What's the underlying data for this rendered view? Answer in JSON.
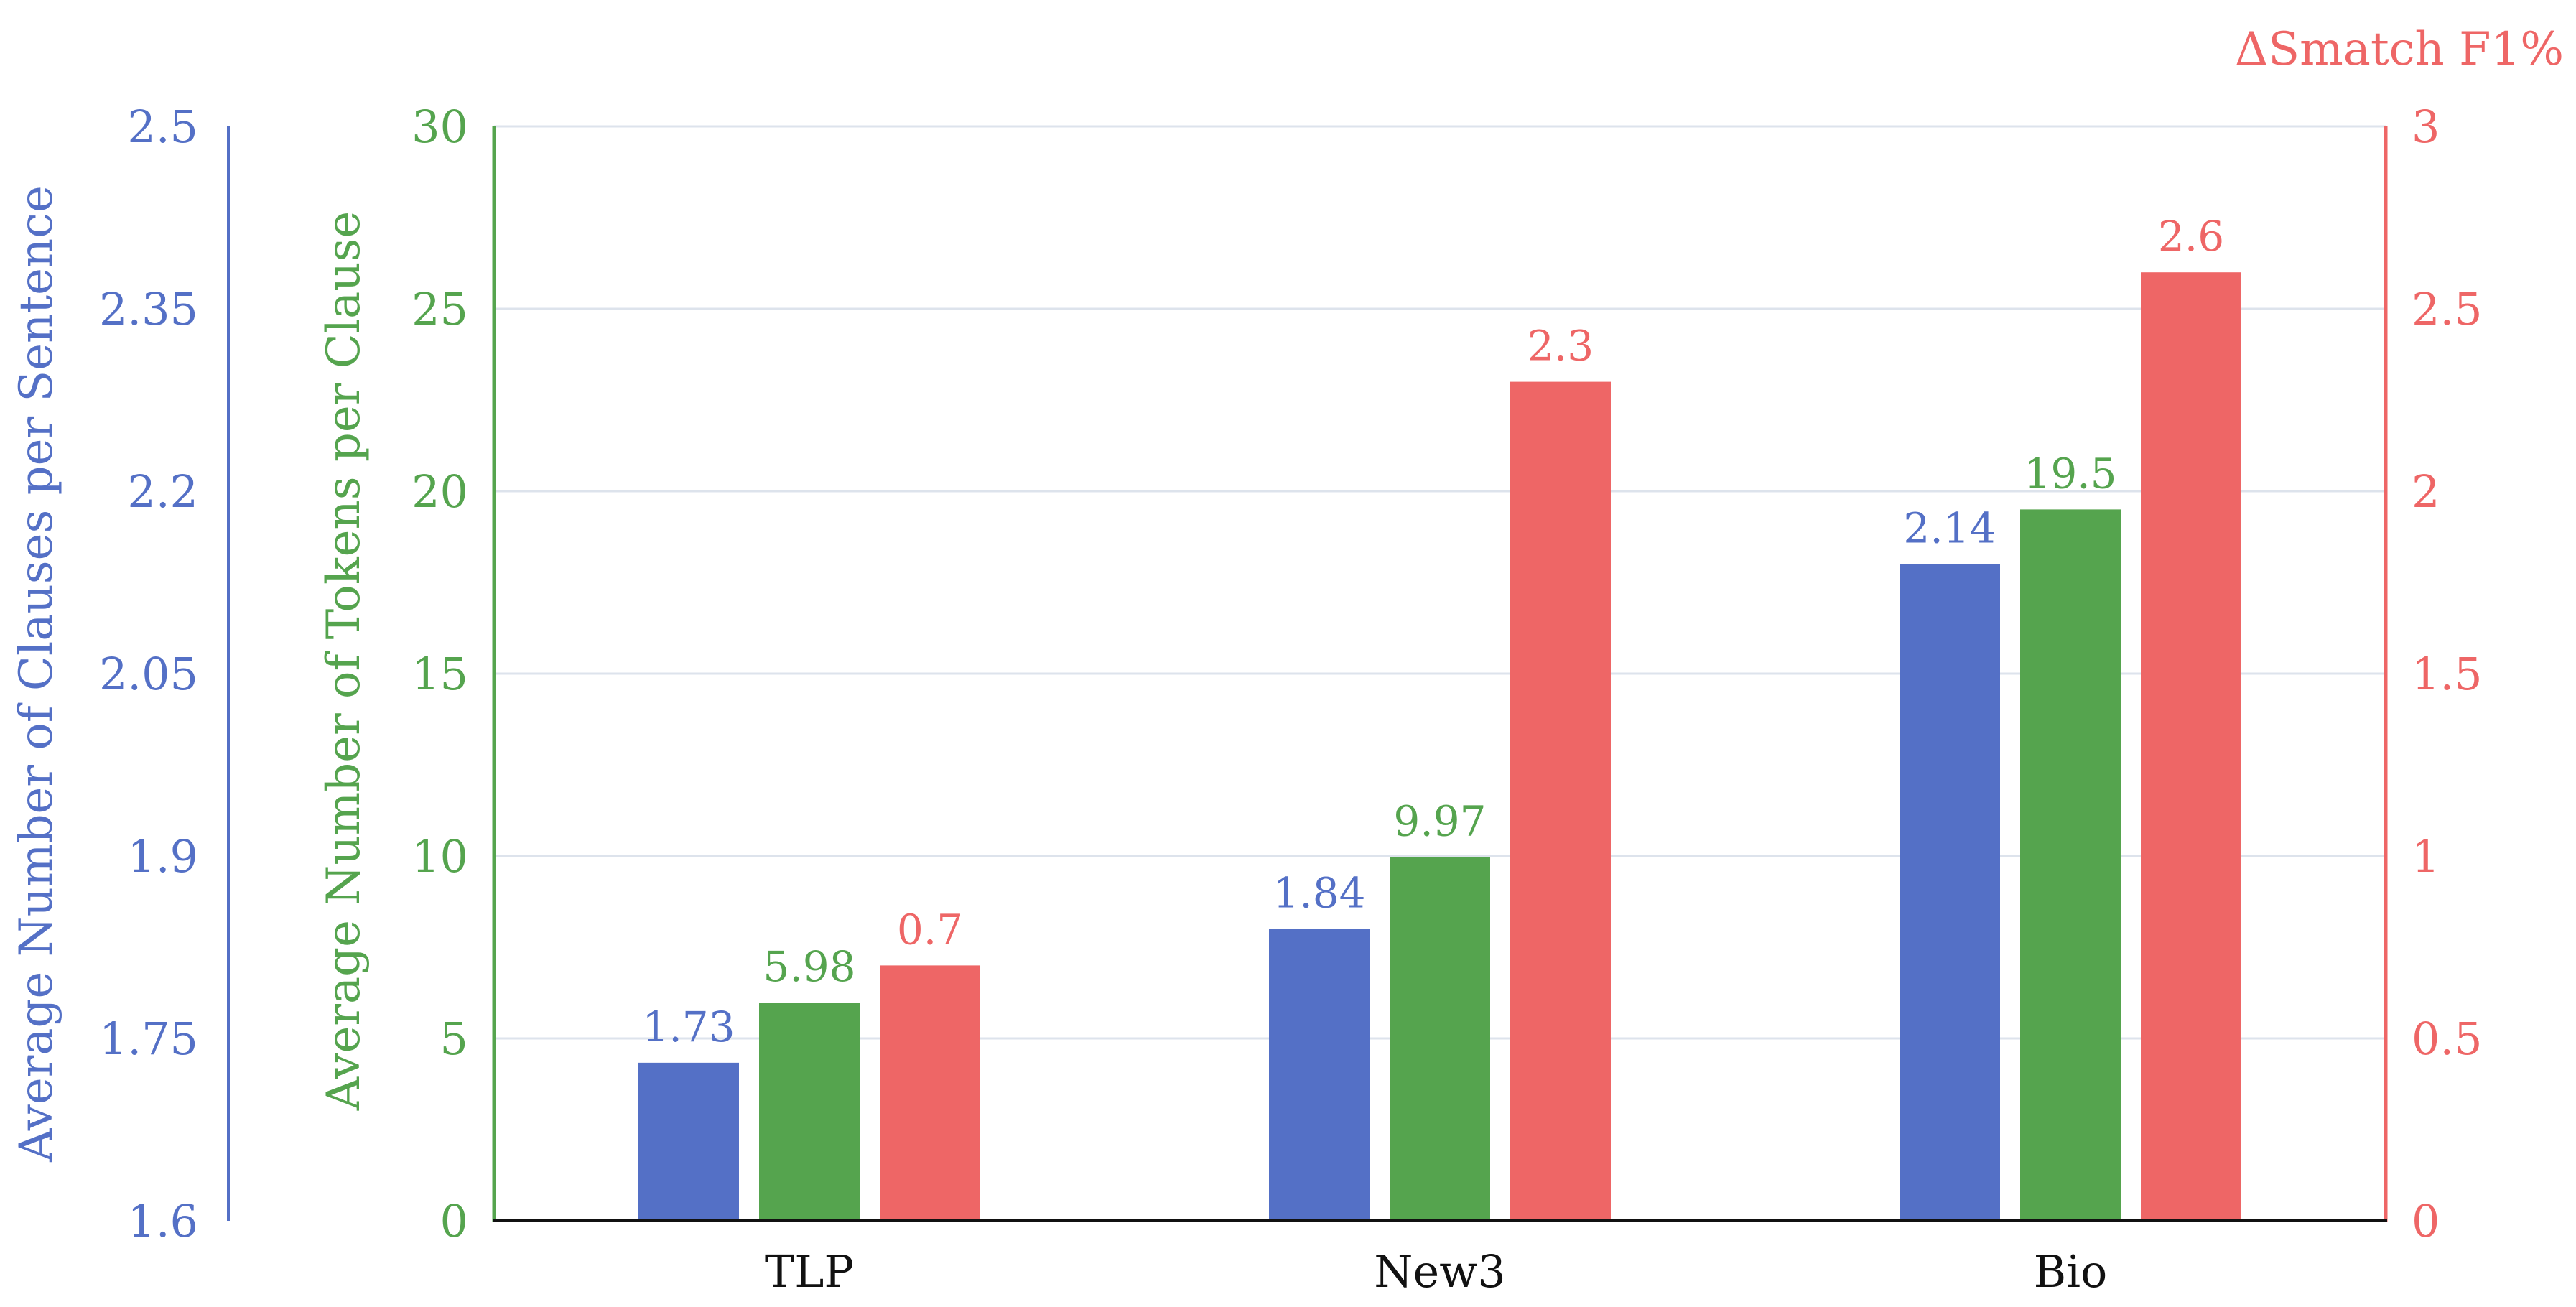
{
  "chart_data": {
    "type": "bar",
    "categories": [
      "TLP",
      "New3",
      "Bio"
    ],
    "series": [
      {
        "axis": "left_outer",
        "values": [
          1.73,
          1.84,
          2.14
        ],
        "labels": [
          "1.73",
          "1.84",
          "2.14"
        ],
        "color": "#5470C6"
      },
      {
        "axis": "left_inner",
        "values": [
          5.98,
          9.97,
          19.5
        ],
        "labels": [
          "5.98",
          "9.97",
          "19.5"
        ],
        "color": "#55A44E"
      },
      {
        "axis": "right",
        "values": [
          0.7,
          2.3,
          2.6
        ],
        "labels": [
          "0.7",
          "2.3",
          "2.6"
        ],
        "color": "#EE6666"
      }
    ],
    "axes": {
      "left_outer": {
        "label": "Average Number of Clauses per Sentence",
        "range": [
          1.6,
          2.5
        ],
        "ticks": [
          "1.6",
          "1.75",
          "1.9",
          "2.05",
          "2.2",
          "2.35",
          "2.5"
        ],
        "color": "#5470C6"
      },
      "left_inner": {
        "label": "Average Number of Tokens per Clause",
        "range": [
          0,
          30
        ],
        "ticks": [
          "0",
          "5",
          "10",
          "15",
          "20",
          "25",
          "30"
        ],
        "color": "#55A44E"
      },
      "right": {
        "label": "ΔSmatch F1%",
        "range": [
          0,
          3
        ],
        "ticks": [
          "0",
          "0.5",
          "1",
          "1.5",
          "2",
          "2.5",
          "3"
        ],
        "color": "#EE6666"
      }
    },
    "grid": true,
    "legend": "none"
  }
}
